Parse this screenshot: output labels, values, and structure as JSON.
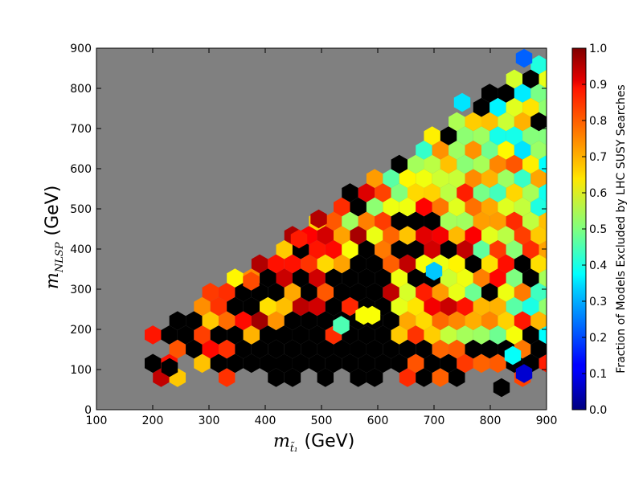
{
  "chart_data": {
    "type": "heatmap",
    "subtype": "hexbin",
    "background_color": "#808080",
    "colormap": "jet",
    "xlabel_symbol": "m",
    "xlabel_subscript": "t̃₁",
    "xlabel_unit": "(GeV)",
    "ylabel_symbol": "m",
    "ylabel_subscript": "NLSP",
    "ylabel_unit": "(GeV)",
    "xlim": [
      100,
      900
    ],
    "ylim": [
      0,
      900
    ],
    "x_ticks": [
      100,
      200,
      300,
      400,
      500,
      600,
      700,
      800,
      900
    ],
    "y_ticks": [
      0,
      100,
      200,
      300,
      400,
      500,
      600,
      700,
      800,
      900
    ],
    "colorbar": {
      "label": "Fraction of Models Excluded by LHC SUSY Searches",
      "range": [
        0,
        1
      ],
      "ticks": [
        "0.0",
        "0.1",
        "0.2",
        "0.3",
        "0.4",
        "0.5",
        "0.6",
        "0.7",
        "0.8",
        "0.9",
        "1.0"
      ]
    },
    "hex_size": 22,
    "grid": false,
    "overall_trend": "fraction excluded ~1.0 at low stop mass and low NLSP mass, decreasing toward the diagonal edge m_NLSP ≈ m_stop at high masses",
    "notable_cells": [
      {
        "x": 230,
        "y": 105,
        "value": 1.0
      },
      {
        "x": 375,
        "y": 320,
        "value": 0.8
      },
      {
        "x": 495,
        "y": 475,
        "value": 0.95
      },
      {
        "x": 460,
        "y": 425,
        "value": 0.85
      },
      {
        "x": 590,
        "y": 235,
        "value": 0.62
      },
      {
        "x": 575,
        "y": 235,
        "value": 0.62
      },
      {
        "x": 535,
        "y": 210,
        "value": 0.45
      },
      {
        "x": 700,
        "y": 345,
        "value": 0.32
      },
      {
        "x": 750,
        "y": 765,
        "value": 0.35
      },
      {
        "x": 860,
        "y": 875,
        "value": 0.22
      },
      {
        "x": 860,
        "y": 90,
        "value": 0.08
      },
      {
        "x": 840,
        "y": 135,
        "value": 0.38
      },
      {
        "x": 820,
        "y": 55,
        "value": 1.0
      }
    ]
  }
}
